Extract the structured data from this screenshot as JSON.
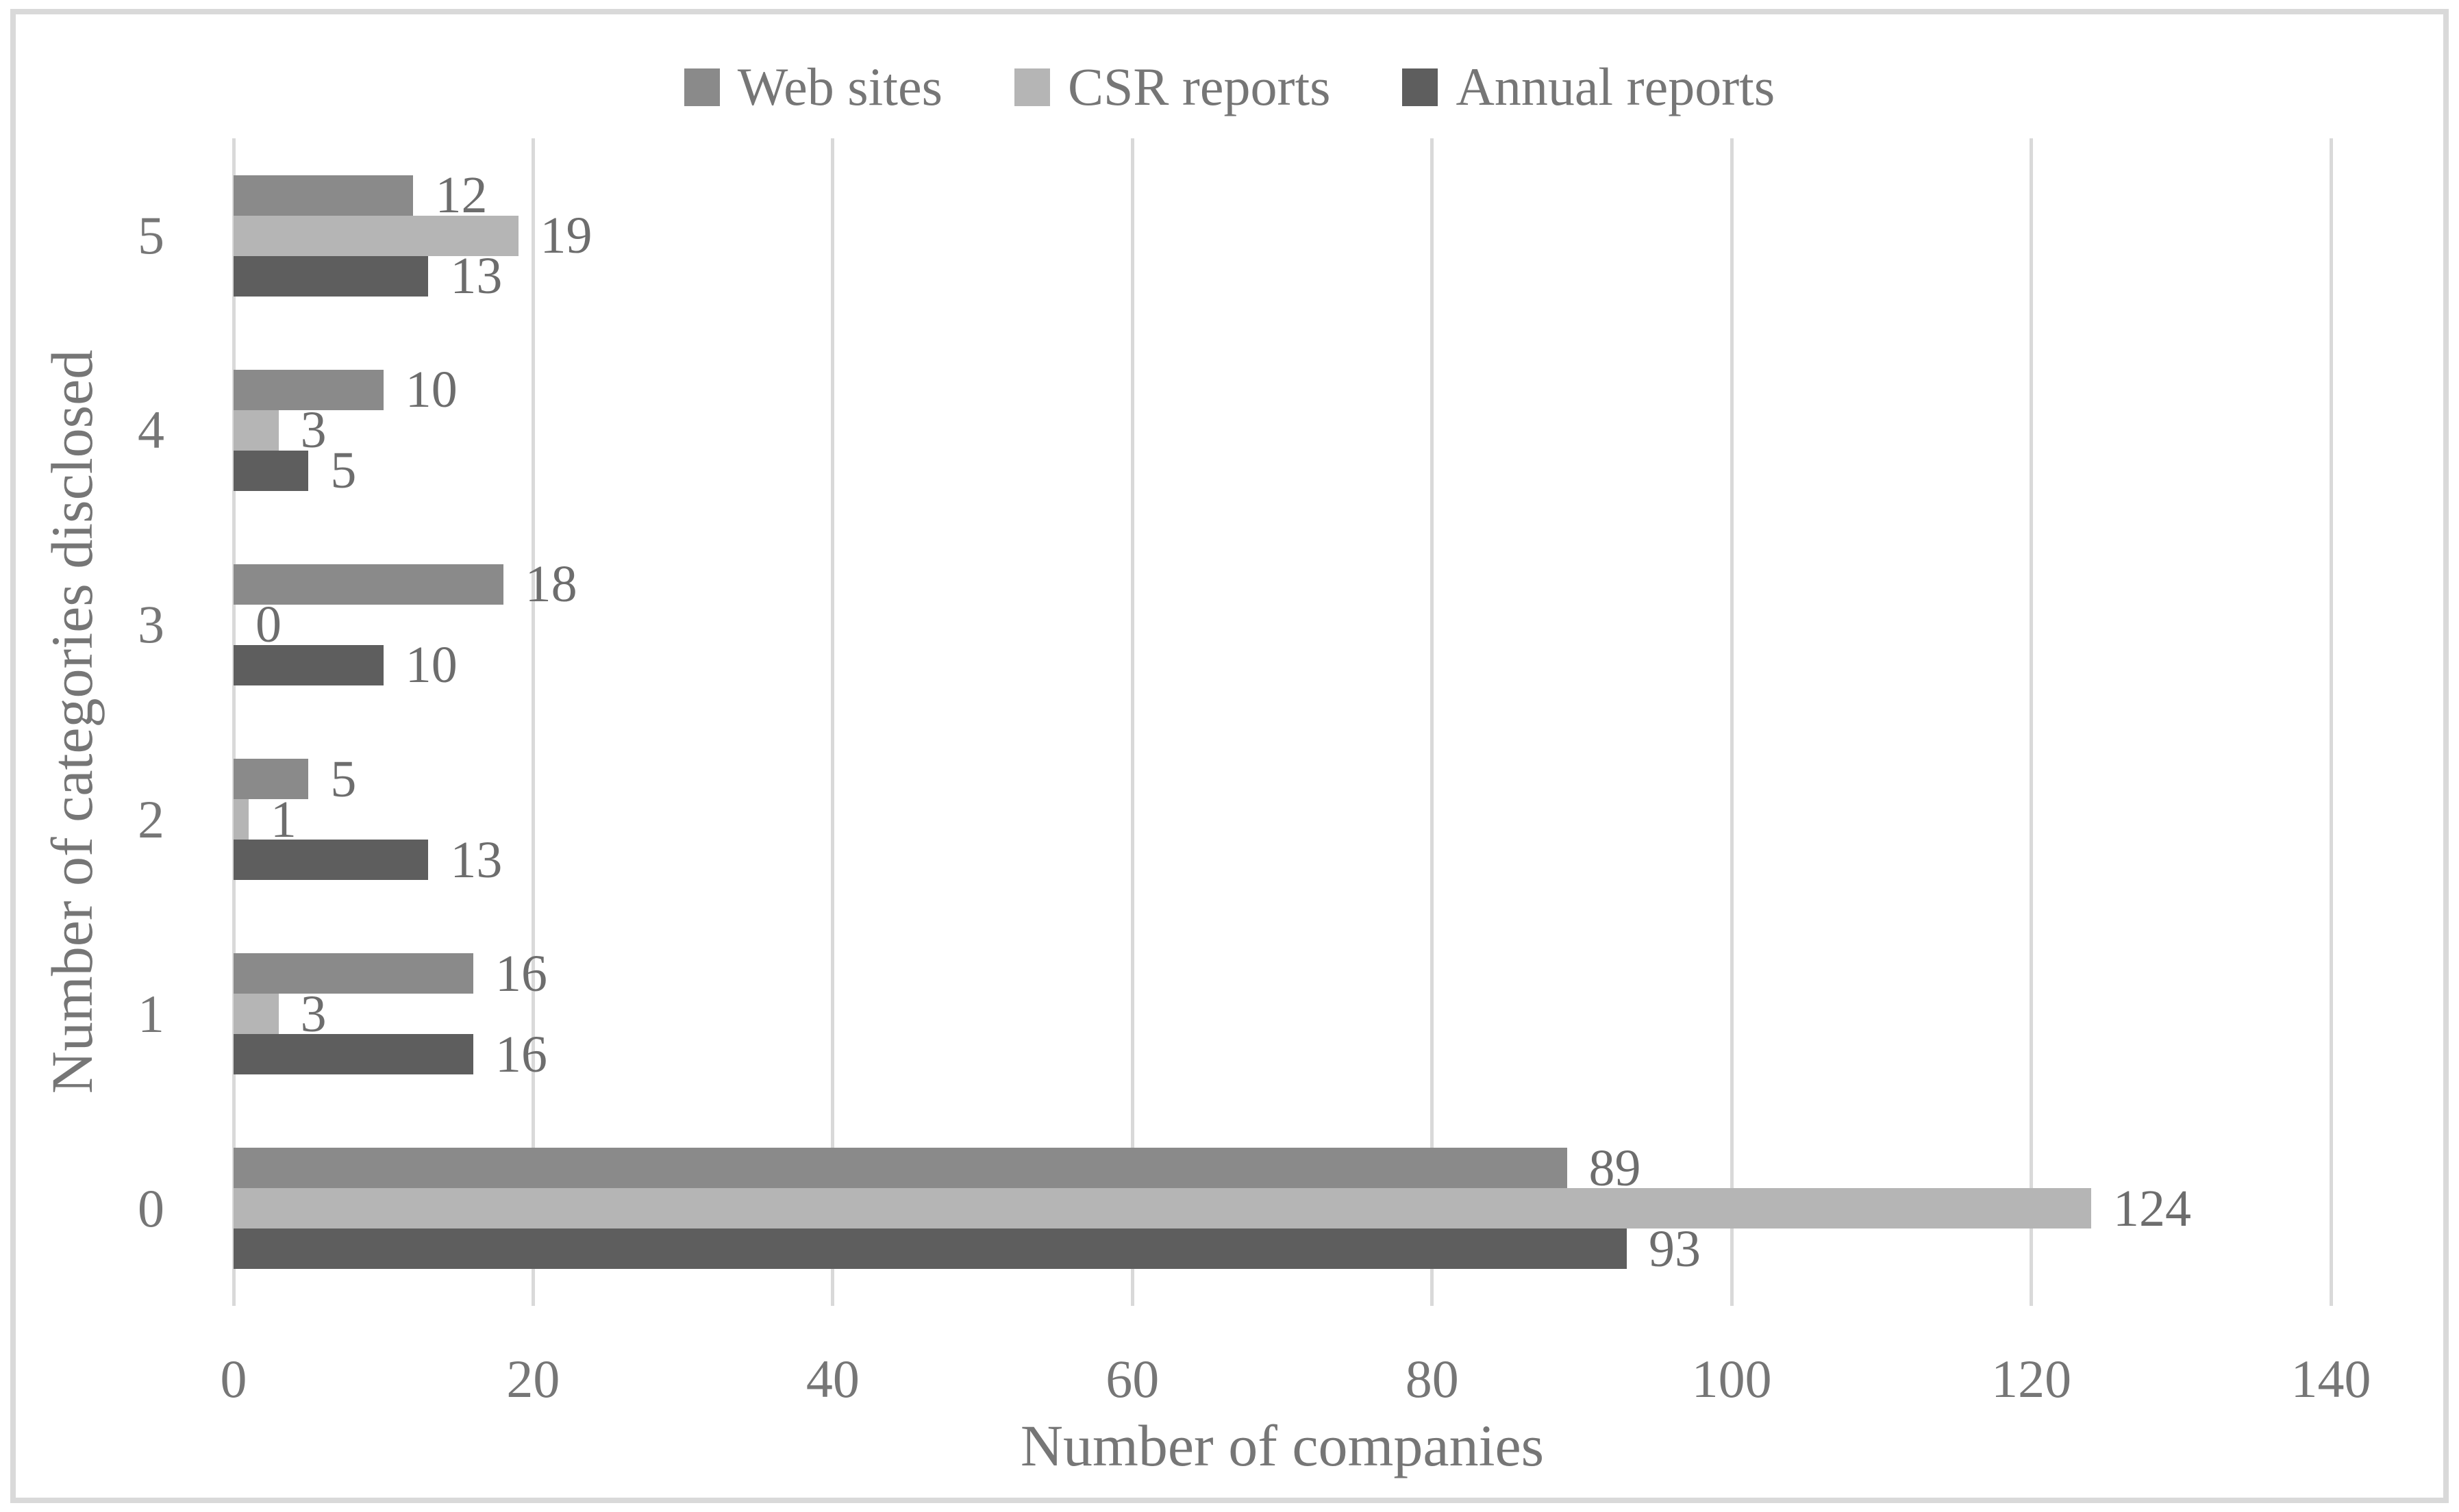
{
  "figure": {
    "background": "#ffffff",
    "border_color": "#d9d9d9",
    "text_color": "#767676",
    "data_label_color": "#6d6d6d",
    "gridline_color": "#d9d9d9"
  },
  "chart_data": {
    "type": "bar",
    "orientation": "horizontal",
    "title": "",
    "xlabel": "Number of companies",
    "ylabel": "Number of categories disclosed",
    "categories": [
      "5",
      "4",
      "3",
      "2",
      "1",
      "0"
    ],
    "series": [
      {
        "name": "Web sites",
        "color": "#8a8a8a",
        "values": [
          12,
          10,
          18,
          5,
          16,
          89
        ]
      },
      {
        "name": "CSR reports",
        "color": "#b5b5b5",
        "values": [
          19,
          3,
          0,
          1,
          3,
          124
        ]
      },
      {
        "name": "Annual reports",
        "color": "#5e5e5e",
        "values": [
          13,
          5,
          10,
          13,
          16,
          93
        ]
      }
    ],
    "xlim": [
      0,
      140
    ],
    "xticks": [
      0,
      20,
      40,
      60,
      80,
      100,
      120,
      140
    ],
    "grid": true,
    "legend_position": "top"
  }
}
